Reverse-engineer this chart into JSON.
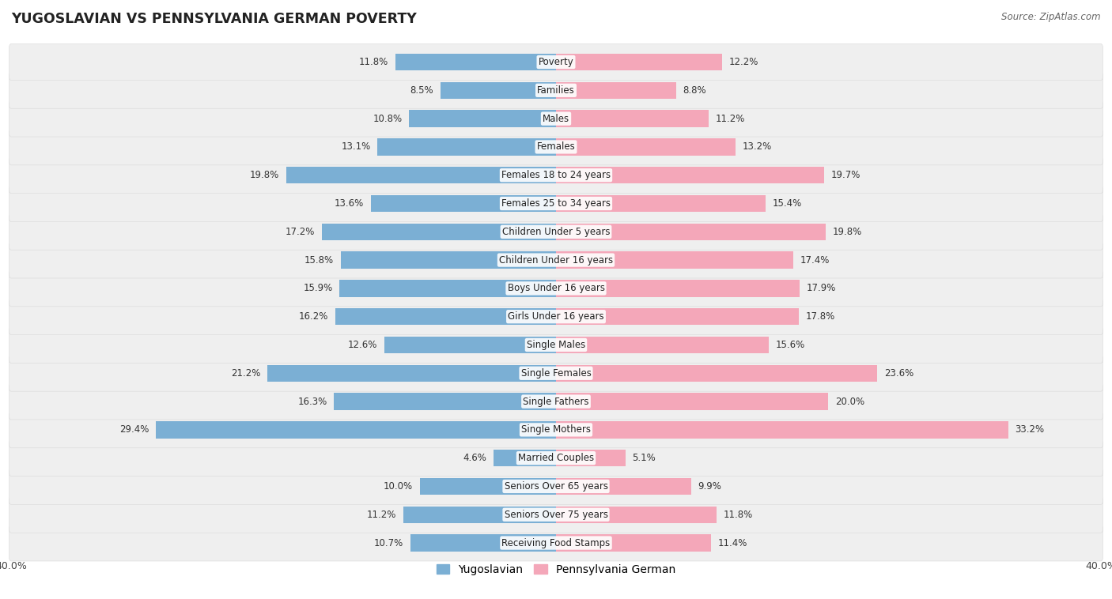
{
  "title": "YUGOSLAVIAN VS PENNSYLVANIA GERMAN POVERTY",
  "source": "Source: ZipAtlas.com",
  "categories": [
    "Poverty",
    "Families",
    "Males",
    "Females",
    "Females 18 to 24 years",
    "Females 25 to 34 years",
    "Children Under 5 years",
    "Children Under 16 years",
    "Boys Under 16 years",
    "Girls Under 16 years",
    "Single Males",
    "Single Females",
    "Single Fathers",
    "Single Mothers",
    "Married Couples",
    "Seniors Over 65 years",
    "Seniors Over 75 years",
    "Receiving Food Stamps"
  ],
  "yugoslavian": [
    11.8,
    8.5,
    10.8,
    13.1,
    19.8,
    13.6,
    17.2,
    15.8,
    15.9,
    16.2,
    12.6,
    21.2,
    16.3,
    29.4,
    4.6,
    10.0,
    11.2,
    10.7
  ],
  "pennsylvania_german": [
    12.2,
    8.8,
    11.2,
    13.2,
    19.7,
    15.4,
    19.8,
    17.4,
    17.9,
    17.8,
    15.6,
    23.6,
    20.0,
    33.2,
    5.1,
    9.9,
    11.8,
    11.4
  ],
  "blue_color": "#7BAFD4",
  "pink_color": "#F4A7B9",
  "bar_height": 0.6,
  "max_val": 40.0,
  "legend_blue": "Yugoslavian",
  "legend_pink": "Pennsylvania German"
}
